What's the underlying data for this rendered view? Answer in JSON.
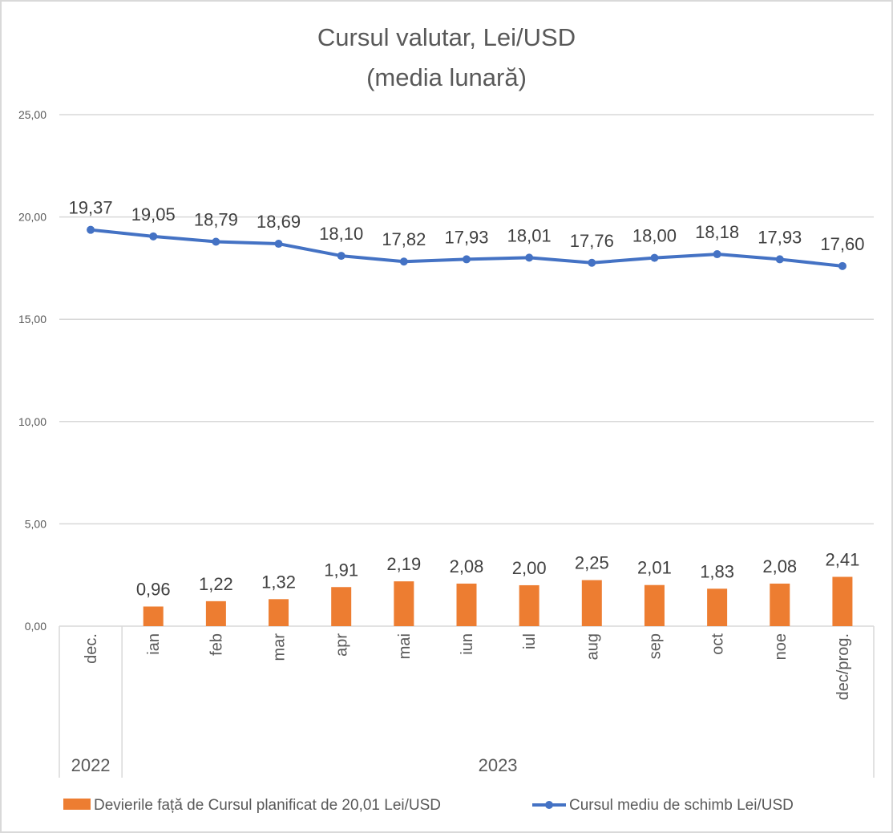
{
  "chart_data": {
    "type": "bar+line",
    "title_lines": [
      "Cursul valutar, Lei/USD",
      "(media lunară)"
    ],
    "xlabel": "",
    "ylabel": "",
    "ylim": [
      0,
      25
    ],
    "yticks": [
      0,
      5,
      10,
      15,
      20,
      25
    ],
    "ytick_labels": [
      "0,00",
      "5,00",
      "10,00",
      "15,00",
      "20,00",
      "25,00"
    ],
    "grid": true,
    "categories": [
      "dec.",
      "ian",
      "feb",
      "mar",
      "apr",
      "mai",
      "iun",
      "iul",
      "aug",
      "sep",
      "oct",
      "noe",
      "dec/prog."
    ],
    "category_groups": [
      {
        "label": "2022",
        "span": 1
      },
      {
        "label": "2023",
        "span": 12
      }
    ],
    "series": [
      {
        "name": "Devierile față de Cursul planificat de 20,01 Lei/USD",
        "type": "bar",
        "color": "#ed7d31",
        "values": [
          null,
          0.96,
          1.22,
          1.32,
          1.91,
          2.19,
          2.08,
          2.0,
          2.25,
          2.01,
          1.83,
          2.08,
          2.41
        ],
        "labels": [
          "",
          "0,96",
          "1,22",
          "1,32",
          "1,91",
          "2,19",
          "2,08",
          "2,00",
          "2,25",
          "2,01",
          "1,83",
          "2,08",
          "2,41"
        ]
      },
      {
        "name": "Cursul mediu de schimb Lei/USD",
        "type": "line",
        "color": "#4472c4",
        "values": [
          19.37,
          19.05,
          18.79,
          18.69,
          18.1,
          17.82,
          17.93,
          18.01,
          17.76,
          18.0,
          18.18,
          17.93,
          17.6
        ],
        "labels": [
          "19,37",
          "19,05",
          "18,79",
          "18,69",
          "18,10",
          "17,82",
          "17,93",
          "18,01",
          "17,76",
          "18,00",
          "18,18",
          "17,93",
          "17,60"
        ]
      }
    ],
    "legend_position": "bottom"
  }
}
